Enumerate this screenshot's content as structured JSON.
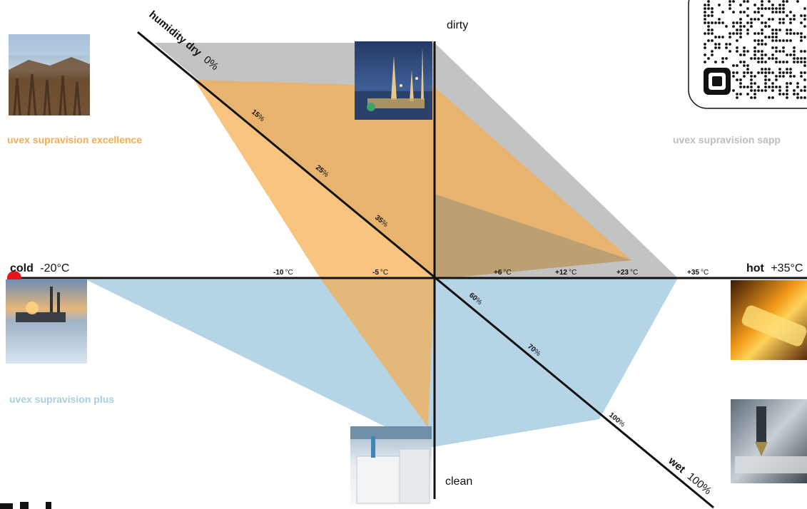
{
  "axes": {
    "dirty": "dirty",
    "clean": "clean",
    "cold_word": "cold",
    "cold_value": "-20°C",
    "hot_word": "hot",
    "hot_value": "+35°C",
    "humidity_dry": "humidity dry",
    "humidity_dry_value": "0%",
    "wet_word": "wet",
    "wet_value": "100%"
  },
  "temperature_ticks": [
    {
      "value": "-10",
      "unit": "°C"
    },
    {
      "value": "-5",
      "unit": "°C"
    },
    {
      "value": "+6",
      "unit": "°C"
    },
    {
      "value": "+12",
      "unit": "°C"
    },
    {
      "value": "+23",
      "unit": "°C"
    },
    {
      "value": "+35",
      "unit": "°C"
    }
  ],
  "humidity_ticks": [
    {
      "value": "15",
      "unit": "%"
    },
    {
      "value": "25",
      "unit": "%"
    },
    {
      "value": "35",
      "unit": "%"
    },
    {
      "value": "60",
      "unit": "%"
    },
    {
      "value": "70",
      "unit": "%"
    },
    {
      "value": "100",
      "unit": "%"
    }
  ],
  "products": [
    {
      "name": "uvex supravision excellence",
      "color": "#f5ad4e"
    },
    {
      "name": "uvex supravision sapp",
      "color": "#b9b9b9"
    },
    {
      "name": "uvex supravision plus",
      "color": "#9cc6dc"
    }
  ],
  "colors": {
    "axis": "#111111",
    "marker": "#e8141b",
    "qr_frame": "#111111"
  },
  "icons": [
    "qr-code-icon",
    "red-dot-marker"
  ]
}
